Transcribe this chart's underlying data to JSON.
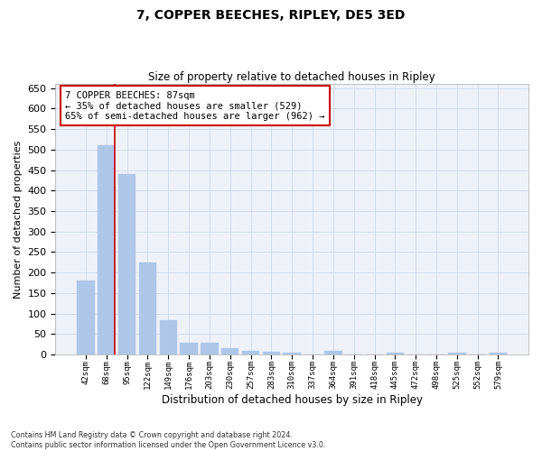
{
  "title1": "7, COPPER BEECHES, RIPLEY, DE5 3ED",
  "title2": "Size of property relative to detached houses in Ripley",
  "xlabel": "Distribution of detached houses by size in Ripley",
  "ylabel": "Number of detached properties",
  "footnote": "Contains HM Land Registry data © Crown copyright and database right 2024.\nContains public sector information licensed under the Open Government Licence v3.0.",
  "categories": [
    "42sqm",
    "68sqm",
    "95sqm",
    "122sqm",
    "149sqm",
    "176sqm",
    "203sqm",
    "230sqm",
    "257sqm",
    "283sqm",
    "310sqm",
    "337sqm",
    "364sqm",
    "391sqm",
    "418sqm",
    "445sqm",
    "472sqm",
    "498sqm",
    "525sqm",
    "552sqm",
    "579sqm"
  ],
  "values": [
    180,
    510,
    440,
    225,
    83,
    28,
    28,
    15,
    8,
    6,
    5,
    0,
    8,
    0,
    0,
    5,
    0,
    0,
    5,
    0,
    5
  ],
  "bar_color": "#aec6e8",
  "bar_edge_color": "#aec6e8",
  "reference_line_color": "#cc0000",
  "annotation_line1": "7 COPPER BEECHES: 87sqm",
  "annotation_line2": "← 35% of detached houses are smaller (529)",
  "annotation_line3": "65% of semi-detached houses are larger (962) →",
  "annotation_box_color": "#cc0000",
  "grid_color": "#d0d8e8",
  "background_color": "#eef2f8",
  "ylim": [
    0,
    660
  ],
  "yticks": [
    0,
    50,
    100,
    150,
    200,
    250,
    300,
    350,
    400,
    450,
    500,
    550,
    600,
    650
  ]
}
